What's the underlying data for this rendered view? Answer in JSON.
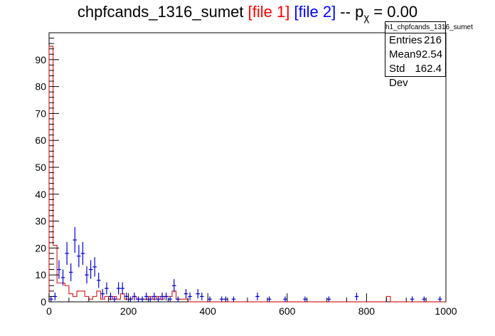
{
  "title": {
    "main": "chpfcands_1316_sumet ",
    "file1": "[file 1]",
    "file2": "[file 2]",
    "suffix_a": " -- p",
    "sub": "χ",
    "suffix_b": " = 0.00"
  },
  "stats": {
    "name": "h1_chpfcands_1316_sumet",
    "rows": [
      {
        "label": "Entries",
        "value": "216"
      },
      {
        "label": "Mean",
        "value": "92.54"
      },
      {
        "label": "Std Dev",
        "value": "162.4"
      }
    ]
  },
  "colors": {
    "file1": "#d62728",
    "file2": "#0000cc"
  },
  "chart_data": {
    "type": "histogram",
    "xlim": [
      0,
      1000
    ],
    "ylim": [
      0,
      100
    ],
    "bin_width": 10,
    "x_ticks": [
      0,
      200,
      400,
      600,
      800,
      1000
    ],
    "y_ticks": [
      0,
      10,
      20,
      30,
      40,
      50,
      60,
      70,
      80,
      90
    ],
    "series": [
      {
        "name": "[file 1]",
        "style": "step",
        "bins": [
          [
            0,
            95
          ],
          [
            10,
            21
          ],
          [
            20,
            7
          ],
          [
            30,
            7
          ],
          [
            40,
            6
          ],
          [
            50,
            3
          ],
          [
            60,
            2
          ],
          [
            70,
            4
          ],
          [
            80,
            4
          ],
          [
            90,
            2
          ],
          [
            100,
            1
          ],
          [
            110,
            2
          ],
          [
            120,
            4
          ],
          [
            130,
            1
          ],
          [
            140,
            2
          ],
          [
            150,
            1
          ],
          [
            160,
            2
          ],
          [
            170,
            1
          ],
          [
            180,
            3
          ],
          [
            190,
            1
          ],
          [
            200,
            1
          ],
          [
            210,
            2
          ],
          [
            220,
            1
          ],
          [
            230,
            1
          ],
          [
            240,
            1
          ],
          [
            250,
            2
          ],
          [
            260,
            1
          ],
          [
            270,
            2
          ],
          [
            280,
            1
          ],
          [
            290,
            2
          ],
          [
            300,
            2
          ],
          [
            310,
            4
          ],
          [
            320,
            1
          ],
          [
            330,
            1
          ],
          [
            340,
            1
          ],
          [
            850,
            2
          ]
        ]
      },
      {
        "name": "[file 2]",
        "style": "errorbar",
        "points": [
          [
            5,
            1
          ],
          [
            15,
            2
          ],
          [
            25,
            12
          ],
          [
            35,
            9
          ],
          [
            45,
            18
          ],
          [
            55,
            11
          ],
          [
            65,
            23
          ],
          [
            75,
            17
          ],
          [
            85,
            18
          ],
          [
            95,
            10
          ],
          [
            105,
            12
          ],
          [
            115,
            13
          ],
          [
            125,
            8
          ],
          [
            135,
            3
          ],
          [
            145,
            5
          ],
          [
            155,
            2
          ],
          [
            165,
            1
          ],
          [
            175,
            5
          ],
          [
            185,
            5
          ],
          [
            195,
            2
          ],
          [
            205,
            1
          ],
          [
            215,
            2
          ],
          [
            225,
            1
          ],
          [
            235,
            1
          ],
          [
            245,
            2
          ],
          [
            255,
            1
          ],
          [
            265,
            2
          ],
          [
            275,
            1
          ],
          [
            285,
            2
          ],
          [
            295,
            2
          ],
          [
            305,
            1
          ],
          [
            315,
            6
          ],
          [
            325,
            1
          ],
          [
            345,
            3
          ],
          [
            355,
            2
          ],
          [
            375,
            3
          ],
          [
            385,
            2
          ],
          [
            405,
            1
          ],
          [
            435,
            1
          ],
          [
            445,
            1
          ],
          [
            465,
            1
          ],
          [
            525,
            2
          ],
          [
            555,
            1
          ],
          [
            595,
            1
          ],
          [
            645,
            1
          ],
          [
            705,
            1
          ],
          [
            775,
            2
          ],
          [
            915,
            1
          ],
          [
            945,
            1
          ],
          [
            985,
            1
          ]
        ]
      }
    ]
  }
}
